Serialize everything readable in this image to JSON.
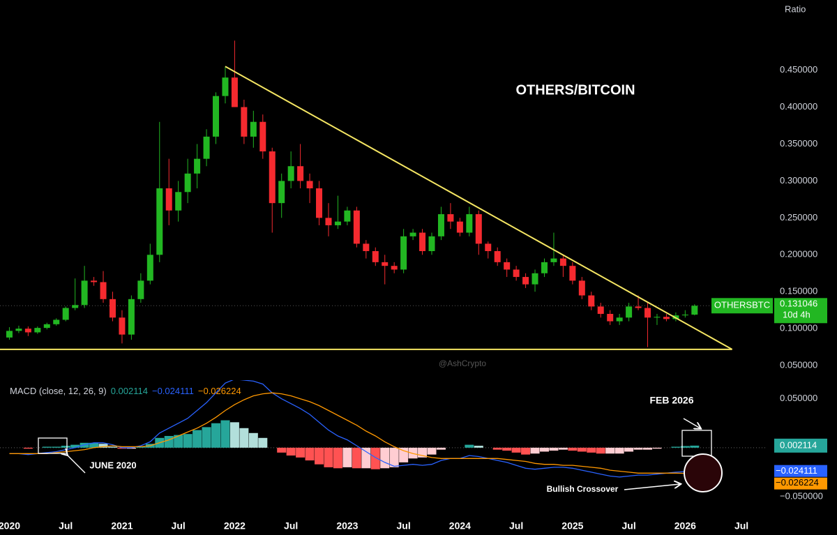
{
  "axis_label": "Ratio",
  "watermark": "@AshCrypto",
  "symbol": "OTHERSBTC",
  "countdown": "10d 4h",
  "chart_data": [
    {
      "type": "candlestick",
      "title": "OTHERS/BITCOIN",
      "x": [
        "2020-01",
        "2020-02",
        "2020-03",
        "2020-04",
        "2020-05",
        "2020-06",
        "2020-07",
        "2020-08",
        "2020-09",
        "2020-10",
        "2020-11",
        "2020-12",
        "2021-01",
        "2021-02",
        "2021-03",
        "2021-04",
        "2021-05",
        "2021-06",
        "2021-07",
        "2021-08",
        "2021-09",
        "2021-10",
        "2021-11",
        "2021-12",
        "2022-01",
        "2022-02",
        "2022-03",
        "2022-04",
        "2022-05",
        "2022-06",
        "2022-07",
        "2022-08",
        "2022-09",
        "2022-10",
        "2022-11",
        "2022-12",
        "2023-01",
        "2023-02",
        "2023-03",
        "2023-04",
        "2023-05",
        "2023-06",
        "2023-07",
        "2023-08",
        "2023-09",
        "2023-10",
        "2023-11",
        "2023-12",
        "2024-01",
        "2024-02",
        "2024-03",
        "2024-04",
        "2024-05",
        "2024-06",
        "2024-07",
        "2024-08",
        "2024-09",
        "2024-10",
        "2024-11",
        "2024-12",
        "2025-01",
        "2025-02",
        "2025-03",
        "2025-04",
        "2025-05",
        "2025-06",
        "2025-07",
        "2025-08",
        "2025-09",
        "2025-10",
        "2025-11",
        "2025-12",
        "2026-01",
        "2026-02"
      ],
      "open": [
        0.088,
        0.097,
        0.1,
        0.095,
        0.101,
        0.106,
        0.112,
        0.128,
        0.132,
        0.165,
        0.163,
        0.14,
        0.115,
        0.092,
        0.14,
        0.165,
        0.2,
        0.29,
        0.26,
        0.285,
        0.31,
        0.33,
        0.36,
        0.415,
        0.44,
        0.4,
        0.36,
        0.38,
        0.34,
        0.27,
        0.3,
        0.32,
        0.3,
        0.29,
        0.25,
        0.24,
        0.245,
        0.26,
        0.215,
        0.205,
        0.19,
        0.185,
        0.18,
        0.225,
        0.23,
        0.205,
        0.225,
        0.255,
        0.245,
        0.23,
        0.255,
        0.215,
        0.205,
        0.19,
        0.18,
        0.17,
        0.16,
        0.175,
        0.19,
        0.195,
        0.185,
        0.165,
        0.145,
        0.13,
        0.12,
        0.11,
        0.115,
        0.13,
        0.128,
        0.115,
        0.116,
        0.113,
        0.118,
        0.119
      ],
      "high": [
        0.102,
        0.104,
        0.103,
        0.103,
        0.108,
        0.114,
        0.13,
        0.168,
        0.185,
        0.17,
        0.178,
        0.15,
        0.125,
        0.145,
        0.175,
        0.215,
        0.38,
        0.33,
        0.3,
        0.33,
        0.35,
        0.37,
        0.42,
        0.455,
        0.49,
        0.41,
        0.395,
        0.39,
        0.345,
        0.31,
        0.34,
        0.35,
        0.31,
        0.3,
        0.27,
        0.28,
        0.265,
        0.265,
        0.22,
        0.21,
        0.2,
        0.19,
        0.235,
        0.235,
        0.235,
        0.23,
        0.265,
        0.27,
        0.25,
        0.265,
        0.26,
        0.218,
        0.21,
        0.195,
        0.185,
        0.175,
        0.18,
        0.195,
        0.23,
        0.2,
        0.19,
        0.17,
        0.15,
        0.135,
        0.125,
        0.12,
        0.135,
        0.145,
        0.135,
        0.12,
        0.12,
        0.122,
        0.125,
        0.133
      ],
      "low": [
        0.085,
        0.094,
        0.09,
        0.093,
        0.099,
        0.104,
        0.11,
        0.125,
        0.128,
        0.158,
        0.135,
        0.11,
        0.08,
        0.085,
        0.135,
        0.16,
        0.19,
        0.24,
        0.245,
        0.27,
        0.29,
        0.32,
        0.35,
        0.405,
        0.4,
        0.35,
        0.345,
        0.33,
        0.23,
        0.25,
        0.29,
        0.29,
        0.27,
        0.24,
        0.225,
        0.235,
        0.24,
        0.21,
        0.195,
        0.185,
        0.16,
        0.175,
        0.175,
        0.22,
        0.2,
        0.2,
        0.22,
        0.235,
        0.225,
        0.225,
        0.2,
        0.195,
        0.185,
        0.17,
        0.165,
        0.155,
        0.15,
        0.17,
        0.185,
        0.17,
        0.16,
        0.14,
        0.125,
        0.115,
        0.105,
        0.105,
        0.11,
        0.125,
        0.075,
        0.105,
        0.11,
        0.11,
        0.115,
        0.118
      ],
      "close": [
        0.097,
        0.1,
        0.095,
        0.101,
        0.106,
        0.112,
        0.128,
        0.132,
        0.165,
        0.163,
        0.14,
        0.115,
        0.092,
        0.14,
        0.165,
        0.2,
        0.29,
        0.26,
        0.285,
        0.31,
        0.33,
        0.36,
        0.415,
        0.44,
        0.4,
        0.36,
        0.38,
        0.34,
        0.27,
        0.3,
        0.32,
        0.3,
        0.29,
        0.25,
        0.24,
        0.245,
        0.26,
        0.215,
        0.205,
        0.19,
        0.185,
        0.18,
        0.225,
        0.23,
        0.205,
        0.225,
        0.255,
        0.245,
        0.23,
        0.255,
        0.215,
        0.205,
        0.19,
        0.18,
        0.17,
        0.16,
        0.175,
        0.19,
        0.195,
        0.185,
        0.165,
        0.145,
        0.13,
        0.12,
        0.11,
        0.115,
        0.13,
        0.128,
        0.115,
        0.116,
        0.113,
        0.118,
        0.119,
        0.131046
      ],
      "up_color": "#22b722",
      "down_color": "#f52a2f",
      "xlim": [
        "2019-12",
        "2026-09"
      ],
      "xticks": [
        {
          "value": "2020-01",
          "label": "2020"
        },
        {
          "value": "2020-07",
          "label": "Jul"
        },
        {
          "value": "2021-01",
          "label": "2021"
        },
        {
          "value": "2021-07",
          "label": "Jul"
        },
        {
          "value": "2022-01",
          "label": "2022"
        },
        {
          "value": "2022-07",
          "label": "Jul"
        },
        {
          "value": "2023-01",
          "label": "2023"
        },
        {
          "value": "2023-07",
          "label": "Jul"
        },
        {
          "value": "2024-01",
          "label": "2024"
        },
        {
          "value": "2024-07",
          "label": "Jul"
        },
        {
          "value": "2025-01",
          "label": "2025"
        },
        {
          "value": "2025-07",
          "label": "Jul"
        },
        {
          "value": "2026-01",
          "label": "2026"
        },
        {
          "value": "2026-07",
          "label": "Jul"
        }
      ],
      "ylim": [
        0.035,
        0.545
      ],
      "yticks": [
        {
          "value": 0.05,
          "label": "0.050000"
        },
        {
          "value": 0.1,
          "label": "0.100000"
        },
        {
          "value": 0.15,
          "label": "0.150000"
        },
        {
          "value": 0.2,
          "label": "0.200000"
        },
        {
          "value": 0.25,
          "label": "0.250000"
        },
        {
          "value": 0.3,
          "label": "0.300000"
        },
        {
          "value": 0.35,
          "label": "0.350000"
        },
        {
          "value": 0.4,
          "label": "0.400000"
        },
        {
          "value": 0.45,
          "label": "0.450000"
        }
      ],
      "trendlines": [
        {
          "x": [
            "2021-12",
            "2026-06"
          ],
          "y": [
            0.455,
            0.072
          ],
          "color": "#f5e663"
        },
        {
          "x": [
            "2019-12",
            "2026-06"
          ],
          "y": [
            0.072,
            0.072
          ],
          "color": "#f5e663"
        }
      ]
    },
    {
      "type": "macd",
      "legend": "MACD (close, 12, 26, 9)",
      "ylim": [
        -0.0735,
        0.069
      ],
      "yticks": [
        {
          "value": 0.05,
          "label": "0.050000"
        },
        {
          "value": -0.05,
          "label": "−0.050000"
        }
      ],
      "histogram": {
        "values": [
          0,
          0,
          -0.001,
          0,
          0.001,
          0.001,
          0.002,
          0.003,
          0.005,
          0.005,
          0.004,
          0.001,
          -0.001,
          -0.001,
          0.001,
          0.004,
          0.01,
          0.012,
          0.013,
          0.014,
          0.018,
          0.021,
          0.025,
          0.028,
          0.026,
          0.02,
          0.015,
          0.01,
          0,
          -0.005,
          -0.008,
          -0.01,
          -0.013,
          -0.017,
          -0.02,
          -0.021,
          -0.02,
          -0.021,
          -0.021,
          -0.022,
          -0.021,
          -0.02,
          -0.015,
          -0.011,
          -0.01,
          -0.007,
          -0.002,
          0,
          0,
          0.003,
          0.002,
          0,
          -0.002,
          -0.003,
          -0.005,
          -0.007,
          -0.006,
          -0.004,
          -0.003,
          -0.002,
          -0.003,
          -0.004,
          -0.005,
          -0.006,
          -0.006,
          -0.006,
          -0.004,
          -0.002,
          -0.002,
          -0.001,
          0,
          0.001,
          0.0017,
          0.002114
        ],
        "colors": {
          "grow_above": "#26a69a",
          "fall_above": "#b2dfdb",
          "grow_below": "#ffcdd2",
          "fall_below": "#ff5252"
        }
      },
      "macd": {
        "color": "#2962ff",
        "last_label": "−0.024111",
        "values": [
          -0.006,
          -0.006,
          -0.007,
          -0.006,
          -0.005,
          -0.004,
          -0.002,
          0,
          0.003,
          0.005,
          0.005,
          0.003,
          0,
          0,
          0.002,
          0.006,
          0.015,
          0.02,
          0.025,
          0.03,
          0.038,
          0.046,
          0.056,
          0.066,
          0.07,
          0.069,
          0.068,
          0.065,
          0.056,
          0.05,
          0.045,
          0.04,
          0.034,
          0.026,
          0.018,
          0.012,
          0.008,
          0.002,
          -0.004,
          -0.01,
          -0.015,
          -0.019,
          -0.018,
          -0.017,
          -0.018,
          -0.017,
          -0.013,
          -0.011,
          -0.011,
          -0.008,
          -0.009,
          -0.011,
          -0.013,
          -0.015,
          -0.018,
          -0.021,
          -0.022,
          -0.021,
          -0.02,
          -0.02,
          -0.021,
          -0.023,
          -0.025,
          -0.027,
          -0.029,
          -0.03,
          -0.029,
          -0.028,
          -0.028,
          -0.027,
          -0.026,
          -0.025,
          -0.0245,
          -0.024111
        ]
      },
      "signal": {
        "color": "#ff9800",
        "last_label": "−0.026224",
        "values": [
          -0.006,
          -0.006,
          -0.006,
          -0.006,
          -0.006,
          -0.005,
          -0.004,
          -0.003,
          -0.002,
          0,
          0.001,
          0.002,
          0.001,
          0.001,
          0.001,
          0.002,
          0.005,
          0.008,
          0.012,
          0.016,
          0.02,
          0.025,
          0.031,
          0.038,
          0.044,
          0.049,
          0.053,
          0.055,
          0.056,
          0.055,
          0.053,
          0.05,
          0.047,
          0.043,
          0.038,
          0.033,
          0.028,
          0.023,
          0.017,
          0.012,
          0.006,
          0.001,
          -0.003,
          -0.006,
          -0.008,
          -0.01,
          -0.011,
          -0.011,
          -0.011,
          -0.011,
          -0.011,
          -0.011,
          -0.011,
          -0.012,
          -0.013,
          -0.014,
          -0.016,
          -0.017,
          -0.017,
          -0.018,
          -0.018,
          -0.019,
          -0.02,
          -0.021,
          -0.023,
          -0.024,
          -0.025,
          -0.026,
          -0.026,
          -0.026,
          -0.026,
          -0.026,
          -0.0262,
          -0.026224
        ]
      },
      "annotations": [
        "JUNE 2020",
        "FEB 2026",
        "Bullish Crossover"
      ]
    }
  ]
}
